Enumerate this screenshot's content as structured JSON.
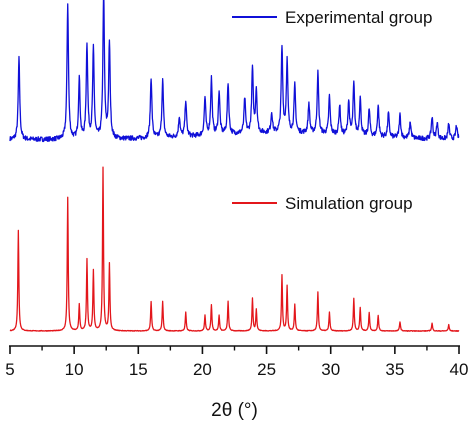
{
  "chart_data": {
    "type": "line",
    "xlabel": "2θ (°)",
    "xlim": [
      5,
      40
    ],
    "x_ticks": [
      "5",
      "10",
      "15",
      "20",
      "25",
      "30",
      "35",
      "40"
    ],
    "legend_placement": "top-right (one legend entry per trace)",
    "series": [
      {
        "name": "Experimental group",
        "color": "#1010d8",
        "peaks": [
          [
            5.7,
            0.6
          ],
          [
            9.5,
            1.0
          ],
          [
            10.4,
            0.45
          ],
          [
            11.0,
            0.7
          ],
          [
            11.5,
            0.66
          ],
          [
            12.3,
            1.08
          ],
          [
            12.75,
            0.71
          ],
          [
            16.0,
            0.45
          ],
          [
            16.9,
            0.43
          ],
          [
            18.2,
            0.15
          ],
          [
            18.7,
            0.27
          ],
          [
            20.2,
            0.28
          ],
          [
            20.7,
            0.42
          ],
          [
            21.3,
            0.32
          ],
          [
            22.0,
            0.38
          ],
          [
            23.3,
            0.26
          ],
          [
            23.9,
            0.48
          ],
          [
            24.2,
            0.32
          ],
          [
            25.4,
            0.15
          ],
          [
            26.2,
            0.63
          ],
          [
            26.6,
            0.53
          ],
          [
            27.2,
            0.35
          ],
          [
            28.3,
            0.22
          ],
          [
            29.0,
            0.45
          ],
          [
            29.9,
            0.28
          ],
          [
            30.7,
            0.22
          ],
          [
            31.4,
            0.25
          ],
          [
            31.8,
            0.38
          ],
          [
            32.3,
            0.28
          ],
          [
            33.0,
            0.2
          ],
          [
            33.7,
            0.23
          ],
          [
            34.5,
            0.18
          ],
          [
            35.4,
            0.17
          ],
          [
            36.2,
            0.12
          ],
          [
            37.9,
            0.16
          ],
          [
            38.3,
            0.12
          ],
          [
            39.2,
            0.11
          ],
          [
            39.8,
            0.1
          ]
        ]
      },
      {
        "name": "Simulation group",
        "color": "#e3161b",
        "peaks": [
          [
            5.65,
            0.65
          ],
          [
            9.5,
            0.86
          ],
          [
            10.4,
            0.17
          ],
          [
            11.0,
            0.46
          ],
          [
            11.5,
            0.39
          ],
          [
            12.25,
            1.05
          ],
          [
            12.75,
            0.43
          ],
          [
            16.0,
            0.19
          ],
          [
            16.9,
            0.19
          ],
          [
            18.7,
            0.12
          ],
          [
            20.2,
            0.1
          ],
          [
            20.7,
            0.17
          ],
          [
            21.3,
            0.1
          ],
          [
            22.0,
            0.19
          ],
          [
            23.9,
            0.21
          ],
          [
            24.2,
            0.14
          ],
          [
            26.2,
            0.36
          ],
          [
            26.6,
            0.29
          ],
          [
            27.2,
            0.17
          ],
          [
            29.0,
            0.25
          ],
          [
            29.9,
            0.12
          ],
          [
            31.8,
            0.21
          ],
          [
            32.3,
            0.15
          ],
          [
            33.0,
            0.12
          ],
          [
            33.7,
            0.1
          ],
          [
            35.4,
            0.06
          ],
          [
            37.9,
            0.05
          ],
          [
            39.2,
            0.04
          ]
        ]
      }
    ]
  }
}
